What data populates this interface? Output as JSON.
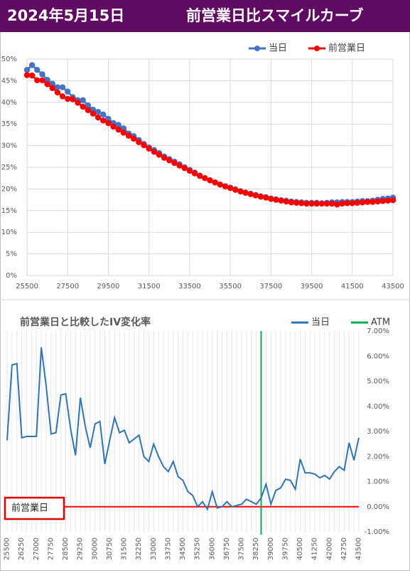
{
  "header": {
    "date": "2024年5月15日",
    "title": "前営業日比スマイルカーブ"
  },
  "chart_data": [
    {
      "type": "line",
      "markers": true,
      "grid": true,
      "legend": "top-right",
      "x": [
        25500,
        25750,
        26000,
        26250,
        26500,
        26750,
        27000,
        27250,
        27500,
        27750,
        28000,
        28250,
        28500,
        28750,
        29000,
        29250,
        29500,
        29750,
        30000,
        30250,
        30500,
        30750,
        31000,
        31250,
        31500,
        31750,
        32000,
        32250,
        32500,
        32750,
        33000,
        33250,
        33500,
        33750,
        34000,
        34250,
        34500,
        34750,
        35000,
        35250,
        35500,
        35750,
        36000,
        36250,
        36500,
        36750,
        37000,
        37250,
        37500,
        37750,
        38000,
        38250,
        38500,
        38750,
        39000,
        39250,
        39500,
        39750,
        40000,
        40250,
        40500,
        40750,
        41000,
        41250,
        41500,
        41750,
        42000,
        42250,
        42500,
        42750,
        43000,
        43250,
        43500
      ],
      "xlim": [
        25500,
        43500
      ],
      "xticks": [
        25500,
        27500,
        29500,
        31500,
        33500,
        35500,
        37500,
        39500,
        41500,
        43500
      ],
      "ylim": [
        0,
        50
      ],
      "yticks": [
        {
          "value": 0,
          "label": "0%"
        },
        {
          "value": 5,
          "label": "5%"
        },
        {
          "value": 10,
          "label": "10%"
        },
        {
          "value": 15,
          "label": "15%"
        },
        {
          "value": 20,
          "label": "20%"
        },
        {
          "value": 25,
          "label": "25%"
        },
        {
          "value": 30,
          "label": "30%"
        },
        {
          "value": 35,
          "label": "35%"
        },
        {
          "value": 40,
          "label": "40%"
        },
        {
          "value": 45,
          "label": "45%"
        },
        {
          "value": 50,
          "label": "50%"
        }
      ],
      "series": [
        {
          "name": "当日",
          "color": "#4472c4",
          "values": [
            47.5,
            48.6,
            47.5,
            46.5,
            45.2,
            44.3,
            43.5,
            43.5,
            42.5,
            41.2,
            40.5,
            40.5,
            39.3,
            38.3,
            37.8,
            37.2,
            36.2,
            35.2,
            34.8,
            34.0,
            32.8,
            32.2,
            31.3,
            30.4,
            29.6,
            29.0,
            28.3,
            27.5,
            26.9,
            26.3,
            25.7,
            25.0,
            24.4,
            23.8,
            23.1,
            22.5,
            22.0,
            21.5,
            21.0,
            20.6,
            20.3,
            19.9,
            19.5,
            19.2,
            18.9,
            18.6,
            18.3,
            18.1,
            17.8,
            17.6,
            17.4,
            17.3,
            17.1,
            17.0,
            16.9,
            16.8,
            16.8,
            16.8,
            16.7,
            16.8,
            16.9,
            16.9,
            17.0,
            17.0,
            17.0,
            17.1,
            17.2,
            17.2,
            17.3,
            17.5,
            17.7,
            17.8,
            18.0
          ]
        },
        {
          "name": "前営業日",
          "color": "#ff0000",
          "values": [
            46.3,
            46.2,
            45.1,
            45.1,
            44.2,
            43.3,
            42.3,
            41.4,
            40.8,
            40.7,
            39.9,
            39.0,
            38.2,
            37.4,
            36.5,
            35.8,
            35.2,
            34.4,
            33.7,
            33.0,
            32.3,
            31.6,
            30.8,
            30.1,
            29.3,
            28.6,
            27.9,
            27.2,
            26.6,
            26.0,
            25.4,
            24.8,
            24.2,
            23.6,
            23.0,
            22.5,
            22.0,
            21.5,
            21.0,
            20.6,
            20.2,
            19.8,
            19.4,
            19.1,
            18.8,
            18.5,
            18.2,
            18.0,
            17.7,
            17.5,
            17.3,
            17.1,
            16.9,
            16.8,
            16.7,
            16.6,
            16.6,
            16.6,
            16.6,
            16.6,
            16.6,
            16.4,
            16.6,
            16.7,
            16.7,
            16.8,
            16.9,
            17.0,
            17.0,
            17.1,
            17.2,
            17.3,
            17.4
          ]
        }
      ]
    },
    {
      "type": "line",
      "markers": false,
      "grid": "x",
      "legend": "top-right",
      "title": "前営業日と比較したIV変化率",
      "x": [
        25500,
        25750,
        26000,
        26250,
        26500,
        26750,
        27000,
        27250,
        27500,
        27750,
        28000,
        28250,
        28500,
        28750,
        29000,
        29250,
        29500,
        29750,
        30000,
        30250,
        30500,
        30750,
        31000,
        31250,
        31500,
        31750,
        32000,
        32250,
        32500,
        32750,
        33000,
        33250,
        33500,
        33750,
        34000,
        34250,
        34500,
        34750,
        35000,
        35250,
        35500,
        35750,
        36000,
        36250,
        36500,
        36750,
        37000,
        37250,
        37500,
        37750,
        38000,
        38250,
        38500,
        38750,
        39000,
        39250,
        39500,
        39750,
        40000,
        40250,
        40500,
        40750,
        41000,
        41250,
        41500,
        41750,
        42000,
        42250,
        42500,
        42750,
        43000,
        43250,
        43500
      ],
      "xlim": [
        25500,
        43500
      ],
      "xticks": [
        25500,
        26250,
        27000,
        27750,
        28500,
        29250,
        30000,
        30750,
        31500,
        32250,
        33000,
        33750,
        34500,
        35250,
        36000,
        36750,
        37500,
        38250,
        39000,
        39750,
        40500,
        41250,
        42000,
        42750,
        43500
      ],
      "ylim": [
        -1,
        7
      ],
      "yticks": [
        {
          "value": 7,
          "label": "7.00%"
        },
        {
          "value": 6,
          "label": "6.00%"
        },
        {
          "value": 5,
          "label": "5.00%"
        },
        {
          "value": 4,
          "label": "4.00%"
        },
        {
          "value": 3,
          "label": "3.00%"
        },
        {
          "value": 2,
          "label": "2.00%"
        },
        {
          "value": 1,
          "label": "1.00%"
        },
        {
          "value": 0,
          "label": "0.00%"
        },
        {
          "value": -1,
          "label": "-1.00%"
        }
      ],
      "series": [
        {
          "name": "当日",
          "color": "#2e75b6",
          "values": [
            2.65,
            5.65,
            5.7,
            2.75,
            2.8,
            2.8,
            2.8,
            6.35,
            4.8,
            2.9,
            2.95,
            4.45,
            4.5,
            3.1,
            2.05,
            4.35,
            3.2,
            2.35,
            3.3,
            3.4,
            1.7,
            2.65,
            3.55,
            2.95,
            3.05,
            2.55,
            2.7,
            2.85,
            2.0,
            1.8,
            2.5,
            2.0,
            1.6,
            1.4,
            1.8,
            1.2,
            1.05,
            0.6,
            0.45,
            0.0,
            0.2,
            -0.1,
            0.6,
            -0.05,
            0.0,
            0.2,
            0.0,
            0.05,
            0.1,
            0.3,
            0.2,
            0.1,
            0.35,
            0.9,
            0.1,
            0.65,
            0.75,
            1.1,
            1.05,
            0.7,
            1.9,
            1.35,
            1.35,
            1.3,
            1.15,
            1.25,
            1.1,
            1.4,
            1.6,
            1.45,
            2.55,
            1.85,
            2.75
          ]
        }
      ],
      "atm": {
        "name": "ATM",
        "color": "#00b050",
        "x": 38500
      },
      "baseline": {
        "label": "前営業日",
        "value": 0,
        "color": "#ff0000"
      }
    }
  ]
}
